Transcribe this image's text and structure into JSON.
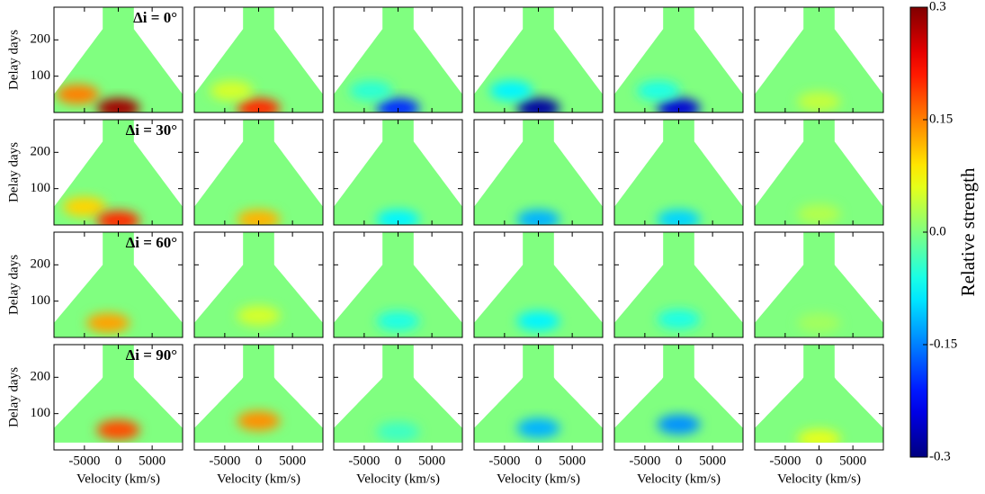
{
  "chart_data": {
    "type": "heatmap",
    "x_label": "Velocity (km/s)",
    "y_label": "Delay days",
    "colorbar_label": "Relative strength",
    "xlim": [
      -9500,
      9500
    ],
    "xticks": [
      -5000,
      0,
      5000
    ],
    "ylim": [
      0,
      290
    ],
    "yticks": [
      100,
      200
    ],
    "clim": [
      -0.3,
      0.3
    ],
    "cticks": [
      -0.3,
      -0.15,
      {
        "value": 0,
        "label": "0.0"
      },
      0.15,
      0.3
    ],
    "colormap": "jet",
    "panels": [
      {
        "label": "Δi = 0°",
        "x": [
          -6000,
          0
        ],
        "y": [
          50,
          12
        ],
        "values": [
          0.15,
          0.28
        ]
      },
      {
        "x": [
          0,
          -4000
        ],
        "y": [
          12,
          60
        ],
        "values": [
          0.2,
          0.05
        ]
      },
      {
        "x": [
          0,
          -4000
        ],
        "y": [
          12,
          60
        ],
        "values": [
          -0.2,
          -0.05
        ]
      },
      {
        "x": [
          0,
          -4000
        ],
        "y": [
          12,
          60
        ],
        "values": [
          -0.28,
          -0.08
        ]
      },
      {
        "x": [
          0,
          -3000
        ],
        "y": [
          12,
          60
        ],
        "values": [
          -0.25,
          -0.06
        ]
      },
      {
        "x": [
          0
        ],
        "y": [
          30
        ],
        "values": [
          0.04
        ]
      },
      {
        "label": "Δi = 30°",
        "x": [
          -5000,
          0
        ],
        "y": [
          50,
          12
        ],
        "values": [
          0.1,
          0.2
        ]
      },
      {
        "x": [
          0
        ],
        "y": [
          15
        ],
        "values": [
          0.12
        ]
      },
      {
        "x": [
          0
        ],
        "y": [
          15
        ],
        "values": [
          -0.08
        ]
      },
      {
        "x": [
          0
        ],
        "y": [
          15
        ],
        "values": [
          -0.12
        ]
      },
      {
        "x": [
          0
        ],
        "y": [
          15
        ],
        "values": [
          -0.1
        ]
      },
      {
        "x": [
          0
        ],
        "y": [
          30
        ],
        "values": [
          0.03
        ]
      },
      {
        "label": "Δi = 60°",
        "x": [
          -1500
        ],
        "y": [
          40
        ],
        "values": [
          0.13
        ]
      },
      {
        "x": [
          0
        ],
        "y": [
          60
        ],
        "values": [
          0.05
        ]
      },
      {
        "x": [
          0
        ],
        "y": [
          45
        ],
        "values": [
          -0.06
        ]
      },
      {
        "x": [
          0
        ],
        "y": [
          45
        ],
        "values": [
          -0.08
        ]
      },
      {
        "x": [
          0
        ],
        "y": [
          50
        ],
        "values": [
          -0.06
        ]
      },
      {
        "x": [
          0
        ],
        "y": [
          40
        ],
        "values": [
          0.02
        ]
      },
      {
        "label": "Δi = 90°",
        "x": [
          0
        ],
        "y": [
          55
        ],
        "values": [
          0.18
        ]
      },
      {
        "x": [
          0
        ],
        "y": [
          80
        ],
        "values": [
          0.14
        ]
      },
      {
        "x": [
          0
        ],
        "y": [
          50
        ],
        "values": [
          -0.04
        ]
      },
      {
        "x": [
          0
        ],
        "y": [
          60
        ],
        "values": [
          -0.12
        ]
      },
      {
        "x": [
          0
        ],
        "y": [
          70
        ],
        "values": [
          -0.14
        ]
      },
      {
        "x": [
          0
        ],
        "y": [
          30
        ],
        "values": [
          0.06
        ]
      }
    ]
  }
}
